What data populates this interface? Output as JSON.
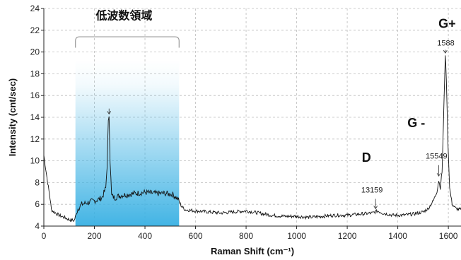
{
  "chart_data": {
    "type": "line",
    "title": "",
    "xlabel": "Raman Shift (cm⁻¹)",
    "ylabel": "Intensity (cnt/sec)",
    "xlim": [
      0,
      1650
    ],
    "ylim": [
      4,
      24
    ],
    "x_ticks": [
      0,
      200,
      400,
      600,
      800,
      1000,
      1200,
      1400,
      1600
    ],
    "y_ticks": [
      4,
      6,
      8,
      10,
      12,
      14,
      16,
      18,
      20,
      22,
      24
    ],
    "grid": true,
    "series": [
      {
        "name": "",
        "color": "#111111",
        "x": [
          0,
          15,
          25,
          30,
          40,
          60,
          80,
          100,
          120,
          135,
          150,
          180,
          210,
          230,
          245,
          250,
          255,
          258,
          262,
          268,
          280,
          300,
          330,
          360,
          400,
          440,
          480,
          510,
          530,
          545,
          560,
          600,
          650,
          700,
          750,
          800,
          850,
          900,
          950,
          1000,
          1050,
          1100,
          1150,
          1200,
          1250,
          1300,
          1320,
          1340,
          1380,
          1420,
          1460,
          1500,
          1520,
          1540,
          1555,
          1562,
          1568,
          1575,
          1580,
          1585,
          1588,
          1592,
          1598,
          1605,
          1615,
          1630,
          1650
        ],
        "y": [
          10.5,
          8.0,
          6.5,
          5.5,
          5.3,
          5.0,
          4.8,
          4.6,
          4.5,
          5.6,
          6.0,
          6.2,
          6.4,
          6.6,
          7.5,
          9.5,
          13.5,
          14.2,
          10.0,
          6.8,
          6.6,
          6.8,
          6.9,
          7.0,
          7.1,
          7.0,
          7.0,
          6.9,
          6.5,
          5.8,
          5.5,
          5.4,
          5.3,
          5.2,
          5.3,
          5.4,
          5.2,
          5.0,
          4.9,
          4.9,
          4.8,
          4.9,
          5.0,
          5.0,
          5.1,
          5.2,
          5.4,
          5.2,
          5.0,
          5.0,
          5.1,
          5.3,
          5.6,
          6.3,
          7.2,
          8.2,
          7.5,
          9.0,
          13.0,
          17.5,
          19.8,
          17.5,
          12.0,
          7.5,
          6.0,
          5.6,
          5.5
        ]
      }
    ],
    "annotations": [
      {
        "text": "低波数領域",
        "x": 317,
        "y": 23.0
      },
      {
        "text": "G+",
        "x": 1595,
        "y": 22.2
      },
      {
        "text": "1588",
        "x": 1590,
        "y": 20.6
      },
      {
        "text": "G -",
        "x": 1473,
        "y": 13.1
      },
      {
        "text": "15549",
        "x": 1553,
        "y": 10.2
      },
      {
        "text": "D",
        "x": 1276,
        "y": 9.9
      },
      {
        "text": "13159",
        "x": 1298,
        "y": 7.1
      }
    ],
    "highlight_region": {
      "x_start": 125,
      "x_end": 535,
      "color": "#38b0e3"
    }
  }
}
